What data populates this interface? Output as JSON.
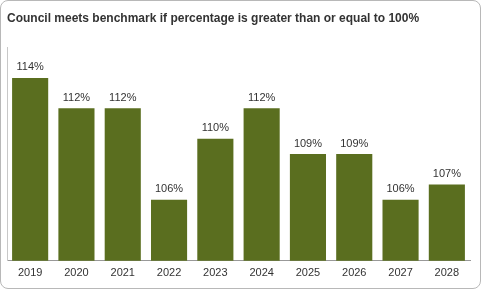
{
  "chart_data": {
    "type": "bar",
    "title": "Council meets benchmark if percentage is greater than or equal to 100%",
    "categories": [
      "2019",
      "2020",
      "2021",
      "2022",
      "2023",
      "2024",
      "2025",
      "2026",
      "2027",
      "2028"
    ],
    "values": [
      114,
      112,
      112,
      106,
      110,
      112,
      109,
      109,
      106,
      107
    ],
    "value_labels": [
      "114%",
      "112%",
      "112%",
      "106%",
      "110%",
      "112%",
      "109%",
      "109%",
      "106%",
      "107%"
    ],
    "color": "#5a6e1f",
    "ylim": [
      102,
      116
    ],
    "grid": false,
    "data_labels": true,
    "tick_labels": "x"
  }
}
